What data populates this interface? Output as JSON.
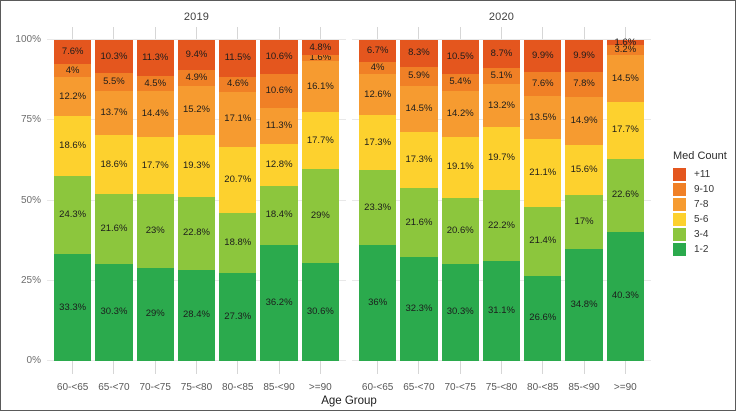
{
  "chart_data": {
    "type": "bar",
    "variant": "stacked-100-percent",
    "title": "",
    "xlabel": "Age Group",
    "ylabel": "",
    "ylim": [
      0,
      100
    ],
    "grid": "horizontal",
    "value_suffix": "%",
    "yticks": [
      {
        "label": "100%",
        "value": 100
      },
      {
        "label": "75%",
        "value": 75
      },
      {
        "label": "50%",
        "value": 50
      },
      {
        "label": "25%",
        "value": 25
      },
      {
        "label": "0%",
        "value": 0
      }
    ],
    "categories": [
      "60-<65",
      "65-<70",
      "70-<75",
      "75-<80",
      "80-<85",
      "85-<90",
      ">=90"
    ],
    "legend": {
      "title": "Med Count",
      "position": "right",
      "items": [
        {
          "label": "+11",
          "color": "#e4561e"
        },
        {
          "label": "9-10",
          "color": "#f08026"
        },
        {
          "label": "7-8",
          "color": "#f69b30"
        },
        {
          "label": "5-6",
          "color": "#fdd12e"
        },
        {
          "label": "3-4",
          "color": "#8cc63d"
        },
        {
          "label": "1-2",
          "color": "#2baa4d"
        }
      ]
    },
    "facets": [
      {
        "label": "2019",
        "series": [
          {
            "name": "1-2",
            "values": [
              33.3,
              30.3,
              29,
              28.4,
              27.3,
              36.2,
              30.6
            ]
          },
          {
            "name": "3-4",
            "values": [
              24.3,
              21.6,
              23,
              22.8,
              18.8,
              18.4,
              29
            ]
          },
          {
            "name": "5-6",
            "values": [
              18.6,
              18.6,
              17.7,
              19.3,
              20.7,
              12.8,
              17.7
            ]
          },
          {
            "name": "7-8",
            "values": [
              12.2,
              13.7,
              14.4,
              15.2,
              17.1,
              11.3,
              16.1
            ]
          },
          {
            "name": "9-10",
            "values": [
              4,
              5.5,
              4.5,
              4.9,
              4.6,
              10.6,
              1.6
            ]
          },
          {
            "name": "+11",
            "values": [
              7.6,
              10.3,
              11.3,
              9.4,
              11.5,
              10.6,
              4.8
            ]
          }
        ]
      },
      {
        "label": "2020",
        "series": [
          {
            "name": "1-2",
            "values": [
              36,
              32.3,
              30.3,
              31.1,
              26.6,
              34.8,
              40.3
            ]
          },
          {
            "name": "3-4",
            "values": [
              23.3,
              21.6,
              20.6,
              22.2,
              21.4,
              17,
              22.6
            ]
          },
          {
            "name": "5-6",
            "values": [
              17.3,
              17.3,
              19.1,
              19.7,
              21.1,
              15.6,
              17.7
            ]
          },
          {
            "name": "7-8",
            "values": [
              12.6,
              14.5,
              14.2,
              13.2,
              13.5,
              14.9,
              14.5
            ]
          },
          {
            "name": "9-10",
            "values": [
              4,
              5.9,
              5.4,
              5.1,
              7.6,
              7.8,
              3.2
            ]
          },
          {
            "name": "+11",
            "values": [
              6.7,
              8.3,
              10.5,
              8.7,
              9.9,
              9.9,
              1.6
            ]
          }
        ]
      }
    ],
    "text_colors": {
      "segment_label": "#1c1c1c",
      "axis_tick": "#6e6e6e",
      "facet_title": "#3f3f3f"
    }
  }
}
